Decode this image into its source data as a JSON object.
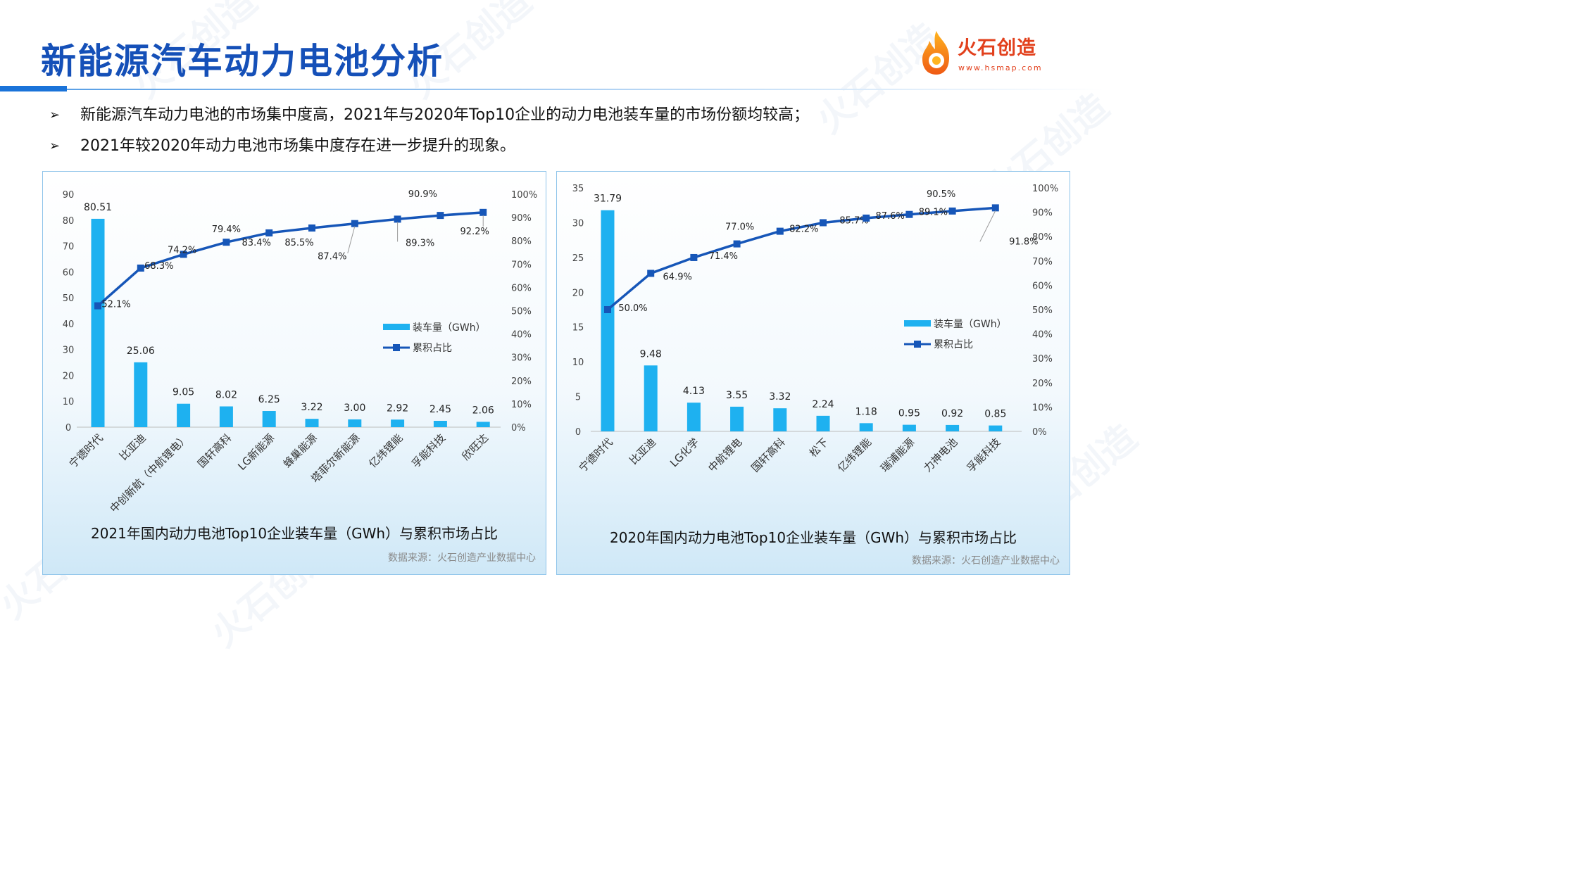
{
  "header": {
    "title": "新能源汽车动力电池分析",
    "logo_text": "火石创造",
    "logo_url": "www.hsmap.com",
    "watermark": "火石创造"
  },
  "bullets": [
    {
      "icon": "➢",
      "text": "新能源汽车动力电池的市场集中度高，2021年与2020年Top10企业的动力电池装车量的市场份额均较高；"
    },
    {
      "icon": "➢",
      "text": "2021年较2020年动力电池市场集中度存在进一步提升的现象。"
    }
  ],
  "colors": {
    "bar": "#1eb1f0",
    "line": "#1656b8",
    "title": "#1550b8",
    "accent": "#1a73d9"
  },
  "chart_data": [
    {
      "type": "bar+line",
      "title": "2021年国内动力电池Top10企业装车量（GWh）与累积市场占比",
      "source": "数据来源：火石创造产业数据中心",
      "categories": [
        "宁德时代",
        "比亚迪",
        "中创新航（中航锂电）",
        "国轩高科",
        "LG新能源",
        "蜂巢能源",
        "塔菲尔新能源",
        "亿纬锂能",
        "孚能科技",
        "欣旺达"
      ],
      "series": [
        {
          "name": "装车量（GWh）",
          "type": "bar",
          "axis": "left",
          "values": [
            80.51,
            25.06,
            9.05,
            8.02,
            6.25,
            3.22,
            3.0,
            2.92,
            2.45,
            2.06
          ],
          "labels": [
            "80.51",
            "25.06",
            "9.05",
            "8.02",
            "6.25",
            "3.22",
            "3.00",
            "2.92",
            "2.45",
            "2.06"
          ]
        },
        {
          "name": "累积占比",
          "type": "line",
          "axis": "right",
          "values": [
            52.1,
            68.3,
            74.2,
            79.4,
            83.4,
            85.5,
            87.4,
            89.3,
            90.9,
            92.2
          ],
          "labels": [
            "52.1%",
            "68.3%",
            "74.2%",
            "79.4%",
            "83.4%",
            "85.5%",
            "87.4%",
            "89.3%",
            "90.9%",
            "92.2%"
          ]
        }
      ],
      "ylim_left": [
        0,
        90
      ],
      "yticks_left": [
        "0",
        "10",
        "20",
        "30",
        "40",
        "50",
        "60",
        "70",
        "80",
        "90"
      ],
      "ylim_right": [
        0,
        100
      ],
      "yticks_right": [
        "0%",
        "10%",
        "20%",
        "30%",
        "40%",
        "50%",
        "60%",
        "70%",
        "80%",
        "90%",
        "100%"
      ],
      "legend": [
        "装车量（GWh）",
        "累积占比"
      ],
      "legend_position": "right",
      "grid": false
    },
    {
      "type": "bar+line",
      "title": "2020年国内动力电池Top10企业装车量（GWh）与累积市场占比",
      "source": "数据来源：火石创造产业数据中心",
      "categories": [
        "宁德时代",
        "比亚迪",
        "LG化学",
        "中航锂电",
        "国轩高科",
        "松下",
        "亿纬锂能",
        "瑞浦能源",
        "力神电池",
        "孚能科技"
      ],
      "series": [
        {
          "name": "装车量（GWh）",
          "type": "bar",
          "axis": "left",
          "values": [
            31.79,
            9.48,
            4.13,
            3.55,
            3.32,
            2.24,
            1.18,
            0.95,
            0.92,
            0.85
          ],
          "labels": [
            "31.79",
            "9.48",
            "4.13",
            "3.55",
            "3.32",
            "2.24",
            "1.18",
            "0.95",
            "0.92",
            "0.85"
          ]
        },
        {
          "name": "累积占比",
          "type": "line",
          "axis": "right",
          "values": [
            50.0,
            64.9,
            71.4,
            77.0,
            82.2,
            85.7,
            87.6,
            89.1,
            90.5,
            91.8
          ],
          "labels": [
            "50.0%",
            "64.9%",
            "71.4%",
            "77.0%",
            "82.2%",
            "85.7%",
            "87.6%",
            "89.1%",
            "90.5%",
            "91.8%"
          ]
        }
      ],
      "ylim_left": [
        0,
        35
      ],
      "yticks_left": [
        "0",
        "5",
        "10",
        "15",
        "20",
        "25",
        "30",
        "35"
      ],
      "ylim_right": [
        0,
        100
      ],
      "yticks_right": [
        "0%",
        "10%",
        "20%",
        "30%",
        "40%",
        "50%",
        "60%",
        "70%",
        "80%",
        "90%",
        "100%"
      ],
      "legend": [
        "装车量（GWh）",
        "累积占比"
      ],
      "legend_position": "right",
      "grid": false
    }
  ]
}
